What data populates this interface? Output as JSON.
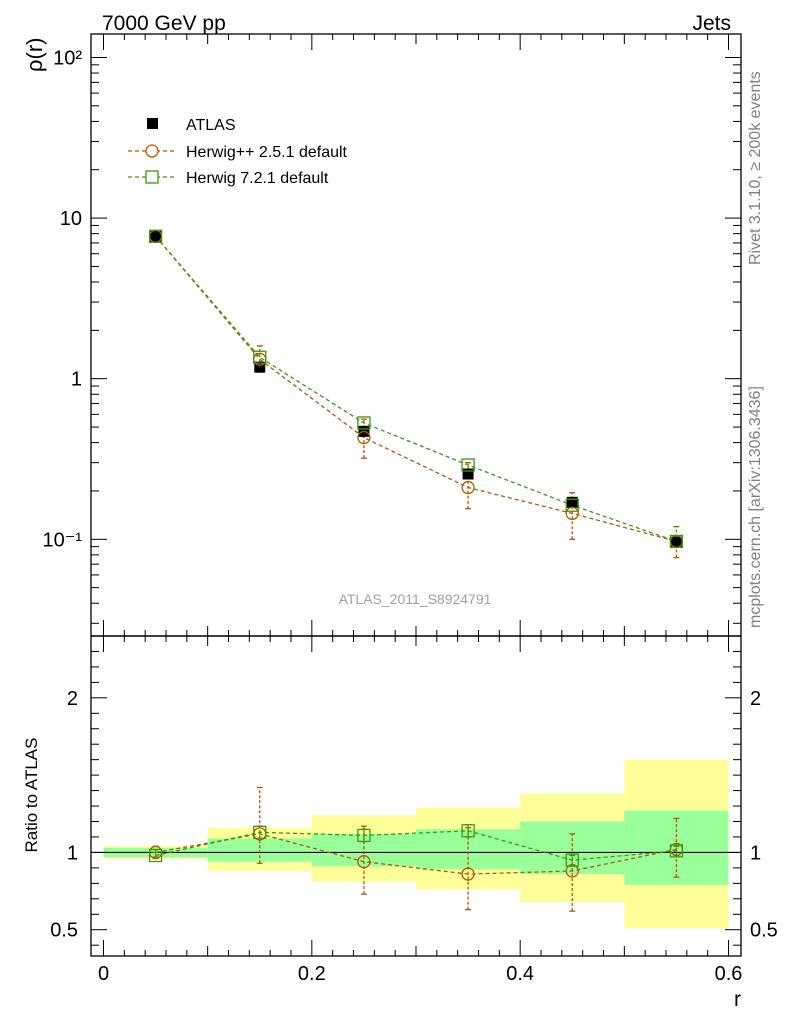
{
  "header": {
    "left": "7000 GeV pp",
    "right": "Jets"
  },
  "side_labels": {
    "rivet": "Rivet 3.1.10, ≥ 200k events",
    "mcplots": "mcplots.cern.ch [arXiv:1306.3436]"
  },
  "watermark": "ATLAS_2011_S8924791",
  "colors": {
    "data": "#000000",
    "herwigpp": "#b35900",
    "herwig7": "#3a9a0c",
    "band_outer": "#ffff99",
    "band_inner": "#99ff99"
  },
  "chart_data": {
    "type": "scatter",
    "xlabel": "r",
    "ylabel": "ρ(r)",
    "ratio_ylabel": "Ratio to ATLAS",
    "xlim": [
      -0.012,
      0.612
    ],
    "ylim_log": [
      0.025,
      140
    ],
    "ratio_ylim": [
      0.33,
      2.4
    ],
    "x_ticks": [
      "0",
      "0.2",
      "0.4",
      "0.6"
    ],
    "y_ticks": [
      "10⁻¹",
      "1",
      "10",
      "10²"
    ],
    "ratio_ticks": [
      "0.5",
      "1",
      "2"
    ],
    "legend": [
      "ATLAS",
      "Herwig++ 2.5.1 default",
      "Herwig 7.2.1 default"
    ],
    "bins": [
      [
        0.0,
        0.1
      ],
      [
        0.1,
        0.2
      ],
      [
        0.2,
        0.3
      ],
      [
        0.3,
        0.4
      ],
      [
        0.4,
        0.5
      ],
      [
        0.5,
        0.6
      ]
    ],
    "x": [
      0.05,
      0.15,
      0.25,
      0.35,
      0.45,
      0.55
    ],
    "series": [
      {
        "name": "ATLAS",
        "values": [
          7.7,
          1.18,
          0.47,
          0.255,
          0.17,
          0.096
        ]
      },
      {
        "name": "Herwig++ 2.5.1 default",
        "values": [
          7.7,
          1.32,
          0.43,
          0.21,
          0.145,
          0.097
        ],
        "err_lo": [
          7.5,
          1.1,
          0.32,
          0.155,
          0.1,
          0.077
        ],
        "err_hi": [
          7.95,
          1.6,
          0.56,
          0.3,
          0.195,
          0.12
        ]
      },
      {
        "name": "Herwig 7.2.1 default",
        "values": [
          7.7,
          1.36,
          0.53,
          0.29,
          0.163,
          0.097
        ]
      }
    ],
    "ratio_series": [
      {
        "name": "Herwig++ 2.5.1 default",
        "values": [
          1.0,
          1.12,
          0.94,
          0.86,
          0.88,
          1.02
        ],
        "err_lo": [
          0.97,
          0.93,
          0.73,
          0.63,
          0.62,
          0.84
        ],
        "err_hi": [
          1.04,
          1.42,
          1.17,
          1.16,
          1.12,
          1.22
        ]
      },
      {
        "name": "Herwig 7.2.1 default",
        "values": [
          0.98,
          1.13,
          1.11,
          1.14,
          0.95,
          1.01
        ],
        "err_lo": [
          0.96,
          1.09,
          1.07,
          1.1,
          0.92,
          0.98
        ],
        "err_hi": [
          1.0,
          1.17,
          1.15,
          1.18,
          0.98,
          1.04
        ]
      }
    ],
    "band_outer": {
      "lo": [
        0.96,
        0.88,
        0.81,
        0.76,
        0.68,
        0.51
      ],
      "hi": [
        1.04,
        1.16,
        1.24,
        1.29,
        1.38,
        1.6
      ]
    },
    "band_inner": {
      "lo": [
        0.97,
        0.94,
        0.91,
        0.89,
        0.86,
        0.79
      ],
      "hi": [
        1.03,
        1.09,
        1.12,
        1.15,
        1.2,
        1.27
      ]
    }
  }
}
